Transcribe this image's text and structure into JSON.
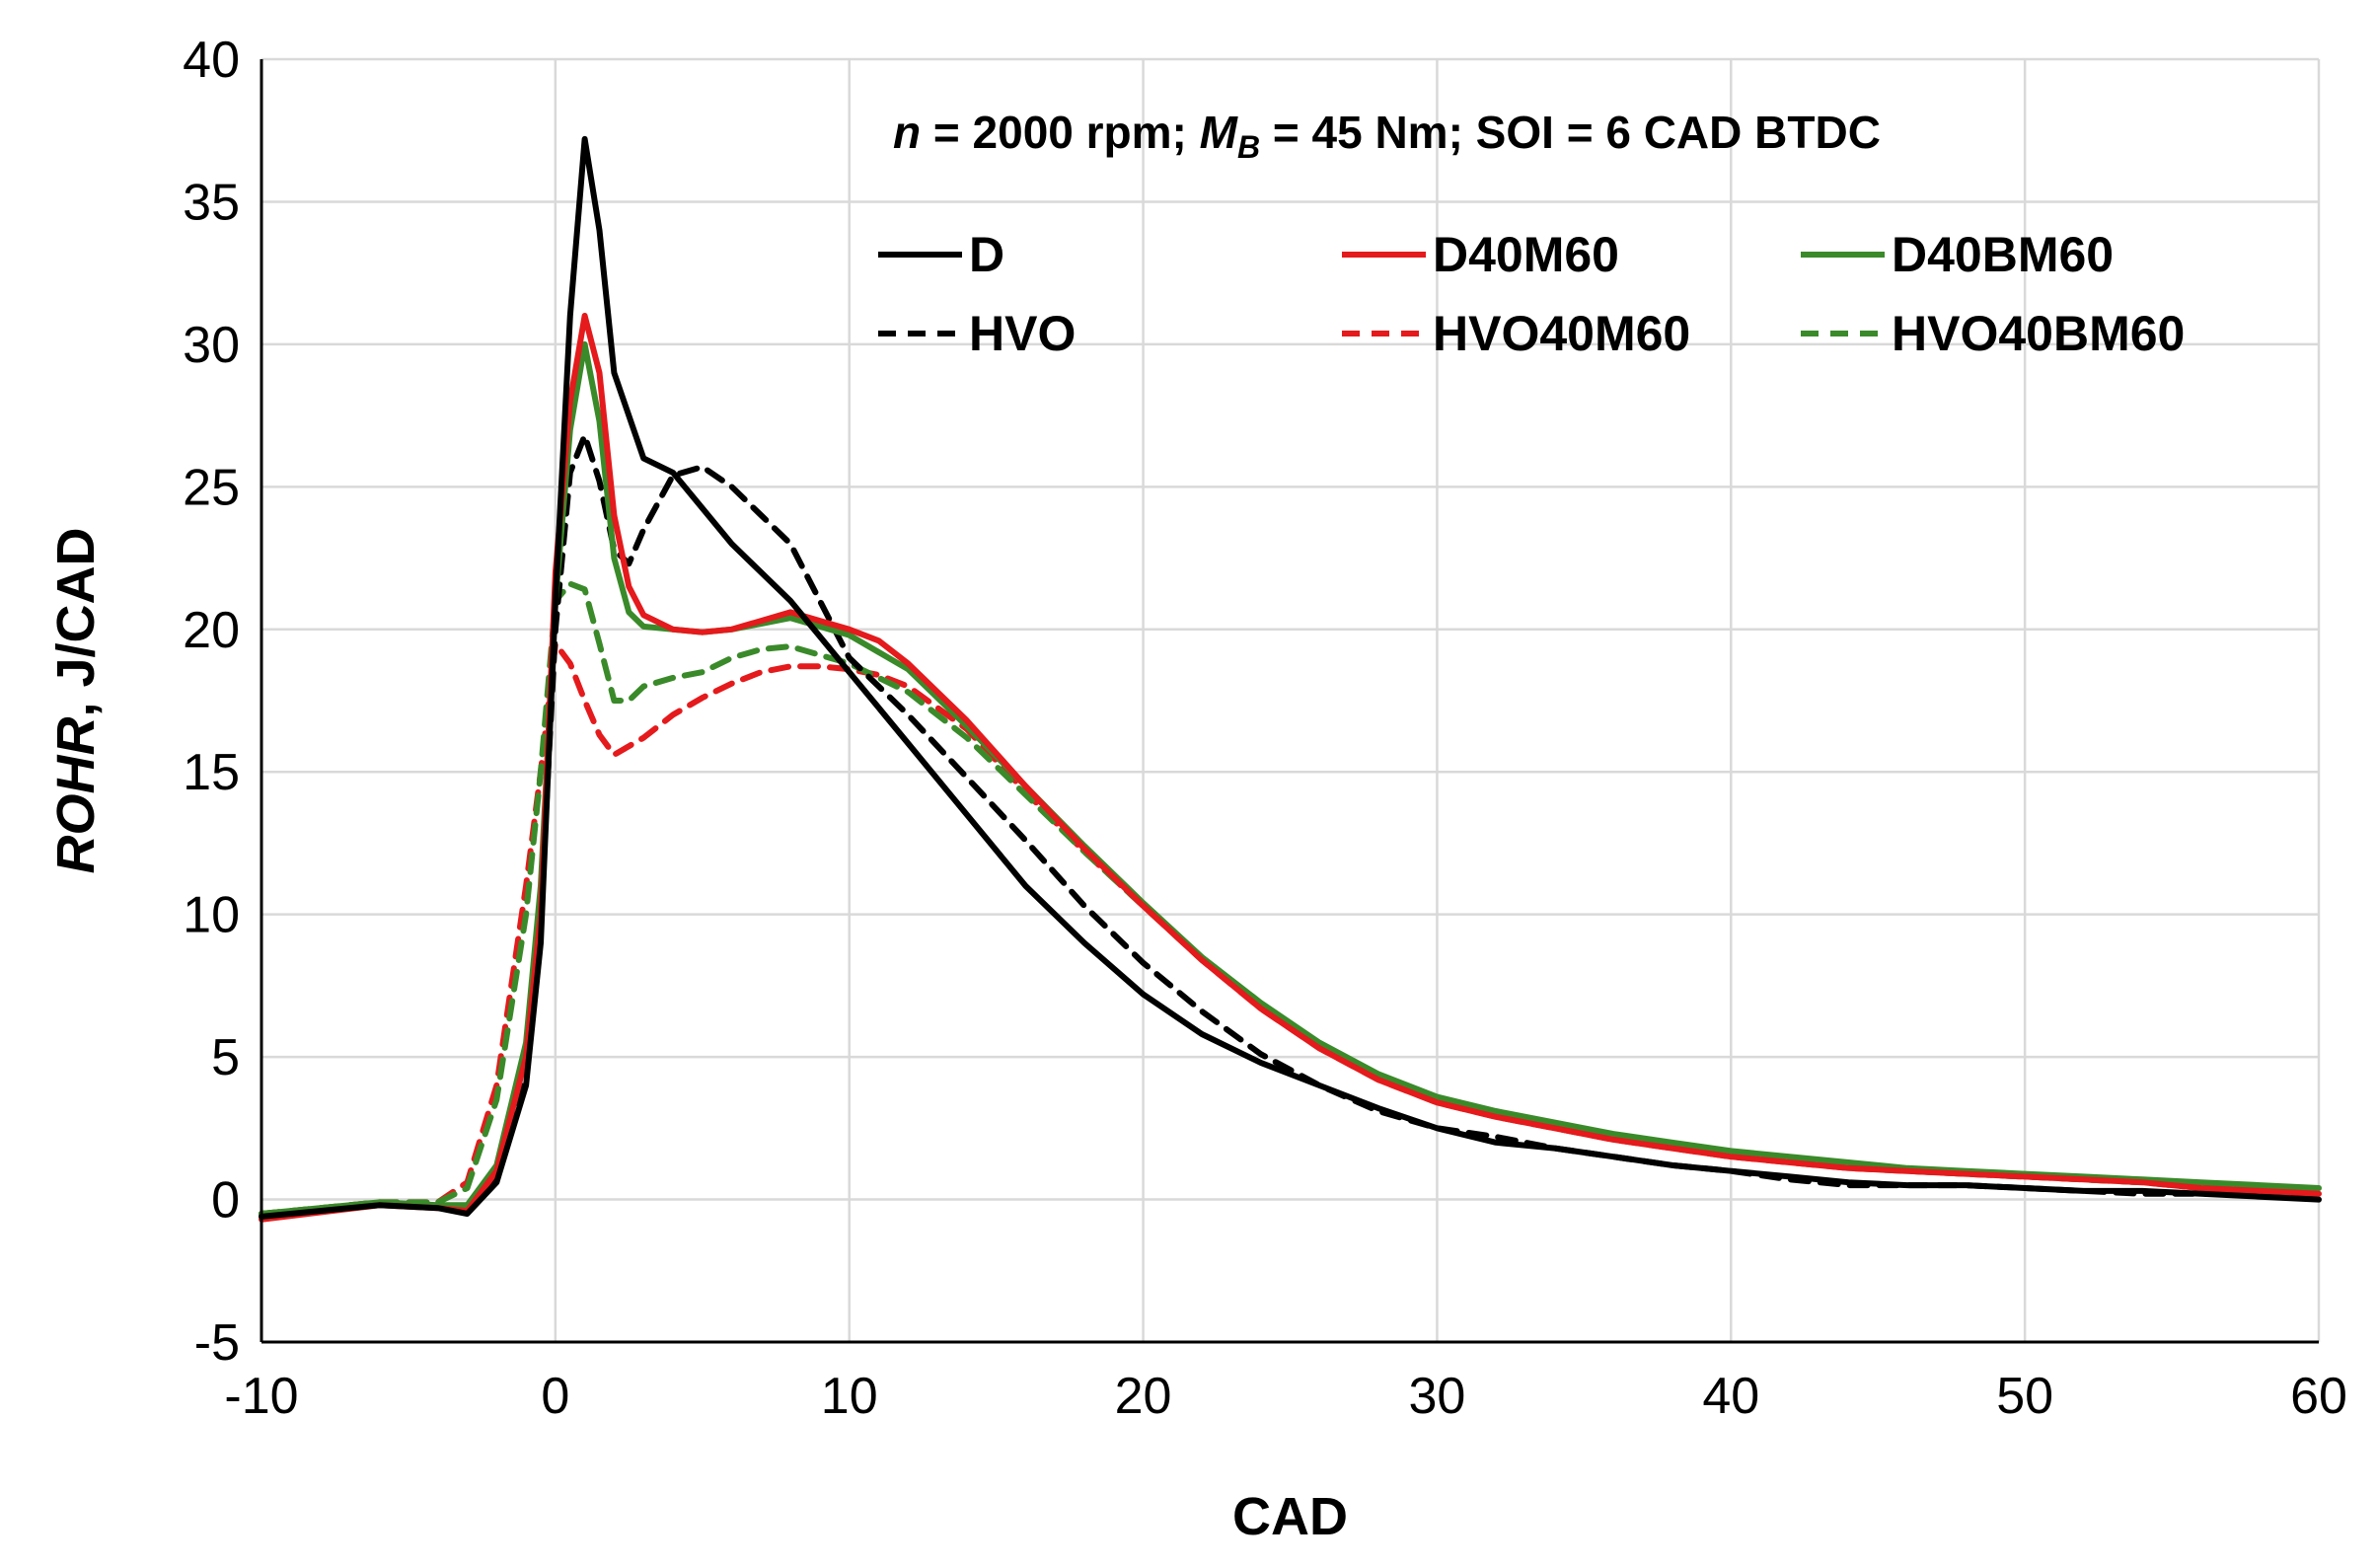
{
  "chart_data": {
    "type": "line",
    "xlabel": "CAD",
    "ylabel_italic": "ROHR",
    "ylabel_rest": ", J/CAD",
    "xlim": [
      -10,
      60
    ],
    "ylim": [
      -5,
      40
    ],
    "xticks": [
      -10,
      0,
      10,
      20,
      30,
      40,
      50,
      60
    ],
    "yticks": [
      -5,
      0,
      5,
      10,
      15,
      20,
      25,
      30,
      35,
      40
    ],
    "grid": true,
    "legend_placement": "top-right",
    "annotation": {
      "n_sym": "n",
      "part1": " = 2000 rpm; ",
      "m_sym": "M",
      "m_sub": "B",
      "part2": " = 45 Nm; SOI = 6 CAD BTDC"
    },
    "series": [
      {
        "name": "D",
        "color": "#000000",
        "dashed": false,
        "x": [
          -10,
          -6,
          -4,
          -3,
          -2,
          -1,
          -0.5,
          0,
          0.5,
          1,
          1.5,
          2,
          3,
          4,
          6,
          8,
          10,
          12,
          14,
          16,
          18,
          20,
          22,
          24,
          26,
          28,
          30,
          32,
          34,
          36,
          38,
          40,
          42,
          44,
          46,
          48,
          50,
          52,
          54,
          56,
          58,
          60
        ],
        "y": [
          -0.6,
          -0.2,
          -0.3,
          -0.5,
          0.6,
          4,
          9,
          21,
          31,
          37.2,
          34,
          29,
          26,
          25.5,
          23,
          21,
          18.5,
          16,
          13.5,
          11,
          9,
          7.2,
          5.8,
          4.8,
          4,
          3.2,
          2.5,
          2,
          1.8,
          1.5,
          1.2,
          1.0,
          0.8,
          0.6,
          0.5,
          0.5,
          0.4,
          0.3,
          0.3,
          0.2,
          0.1,
          0.0
        ]
      },
      {
        "name": "HVO",
        "color": "#000000",
        "dashed": true,
        "x": [
          -10,
          -6,
          -4,
          -3,
          -2,
          -1,
          -0.5,
          0,
          0.5,
          1,
          1.5,
          2,
          2.5,
          3,
          4,
          5,
          6,
          7,
          8,
          9,
          10,
          12,
          14,
          16,
          18,
          20,
          22,
          24,
          26,
          28,
          30,
          32,
          34,
          36,
          38,
          40,
          42,
          44,
          46,
          48,
          50,
          52,
          54,
          56,
          58,
          60
        ],
        "y": [
          -0.5,
          -0.2,
          -0.2,
          -0.3,
          0.8,
          4.5,
          10,
          20,
          25.5,
          26.8,
          25.2,
          22.8,
          22.3,
          23.5,
          25.4,
          25.7,
          25,
          24,
          23,
          21,
          19,
          17,
          14.8,
          12.6,
          10.3,
          8.3,
          6.6,
          5.1,
          4,
          3.1,
          2.5,
          2.2,
          1.8,
          1.5,
          1.2,
          1.0,
          0.7,
          0.5,
          0.5,
          0.5,
          0.4,
          0.3,
          0.2,
          0.2,
          0.2,
          0.2
        ]
      },
      {
        "name": "D40M60",
        "color": "#e41a1c",
        "dashed": false,
        "x": [
          -10,
          -6,
          -4,
          -3,
          -2,
          -1,
          -0.5,
          0,
          0.5,
          1,
          1.5,
          2,
          2.5,
          3,
          4,
          5,
          6,
          7,
          8,
          9,
          10,
          11,
          12,
          14,
          16,
          18,
          20,
          22,
          24,
          26,
          28,
          30,
          32,
          34,
          36,
          38,
          40,
          42,
          44,
          46,
          48,
          50,
          52,
          54,
          56,
          58,
          60
        ],
        "y": [
          -0.7,
          -0.2,
          -0.3,
          -0.4,
          1,
          5,
          10,
          22,
          28,
          31,
          29,
          24,
          21.5,
          20.5,
          20,
          19.9,
          20,
          20.3,
          20.6,
          20.3,
          20,
          19.6,
          18.8,
          16.8,
          14.5,
          12.3,
          10.3,
          8.4,
          6.7,
          5.3,
          4.2,
          3.4,
          2.9,
          2.5,
          2.1,
          1.8,
          1.5,
          1.3,
          1.1,
          1.0,
          0.9,
          0.8,
          0.7,
          0.6,
          0.4,
          0.3,
          0.2
        ]
      },
      {
        "name": "HVO40M60",
        "color": "#e41a1c",
        "dashed": true,
        "x": [
          -10,
          -6,
          -4,
          -3,
          -2,
          -1,
          -0.5,
          0,
          0.5,
          1,
          1.5,
          2,
          3,
          4,
          5,
          6,
          7,
          8,
          9,
          10,
          11,
          12,
          14,
          16,
          18,
          20,
          22,
          24,
          26,
          28,
          30,
          32,
          34,
          36,
          38,
          40,
          42,
          44,
          46,
          48,
          50,
          52,
          54,
          56,
          58,
          60
        ],
        "y": [
          -0.5,
          -0.1,
          -0.1,
          0.6,
          4,
          11,
          15,
          19.5,
          18.8,
          17.5,
          16.3,
          15.6,
          16.2,
          17,
          17.6,
          18.1,
          18.5,
          18.7,
          18.7,
          18.6,
          18.4,
          18,
          16.5,
          14.3,
          12.2,
          10.3,
          8.4,
          6.7,
          5.3,
          4.2,
          3.4,
          2.9,
          2.5,
          2.1,
          1.8,
          1.5,
          1.3,
          1.1,
          1.0,
          0.9,
          0.8,
          0.7,
          0.6,
          0.4,
          0.3,
          0.2
        ]
      },
      {
        "name": "D40BM60",
        "color": "#3a8a2a",
        "dashed": false,
        "x": [
          -10,
          -6,
          -4,
          -3,
          -2,
          -1,
          -0.5,
          0,
          0.5,
          1,
          1.5,
          2,
          2.5,
          3,
          4,
          5,
          6,
          7,
          8,
          9,
          10,
          12,
          14,
          16,
          18,
          20,
          22,
          24,
          26,
          28,
          30,
          32,
          34,
          36,
          38,
          40,
          42,
          44,
          46,
          48,
          50,
          52,
          54,
          56,
          58,
          60
        ],
        "y": [
          -0.5,
          -0.1,
          -0.2,
          -0.2,
          1.2,
          5.5,
          11,
          21,
          27,
          30,
          27.3,
          22.5,
          20.6,
          20.1,
          20,
          19.9,
          20,
          20.2,
          20.4,
          20.1,
          19.8,
          18.6,
          16.6,
          14.5,
          12.4,
          10.4,
          8.5,
          6.9,
          5.5,
          4.4,
          3.6,
          3.1,
          2.7,
          2.3,
          2.0,
          1.7,
          1.5,
          1.3,
          1.1,
          1.0,
          0.9,
          0.8,
          0.7,
          0.6,
          0.5,
          0.4
        ]
      },
      {
        "name": "HVO40BM60",
        "color": "#3a8a2a",
        "dashed": true,
        "x": [
          -10,
          -6,
          -4,
          -3,
          -2,
          -1,
          -0.5,
          0,
          0.5,
          1,
          1.5,
          2,
          2.5,
          3,
          4,
          5,
          6,
          7,
          8,
          9,
          10,
          12,
          14,
          16,
          18,
          20,
          22,
          24,
          26,
          28,
          30,
          32,
          34,
          36,
          38,
          40,
          42,
          44,
          46,
          48,
          50,
          52,
          54,
          56,
          58,
          60
        ],
        "y": [
          -0.5,
          -0.1,
          -0.1,
          0.4,
          3.5,
          10,
          15,
          21,
          21.6,
          21.4,
          19.5,
          17.5,
          17.5,
          18,
          18.3,
          18.5,
          19,
          19.3,
          19.4,
          19.1,
          18.8,
          17.8,
          16.2,
          14.2,
          12.2,
          10.3,
          8.4,
          6.8,
          5.4,
          4.3,
          3.5,
          3.0,
          2.6,
          2.2,
          1.9,
          1.6,
          1.4,
          1.2,
          1.0,
          0.9,
          0.8,
          0.7,
          0.6,
          0.5,
          0.4,
          0.3
        ]
      }
    ]
  }
}
